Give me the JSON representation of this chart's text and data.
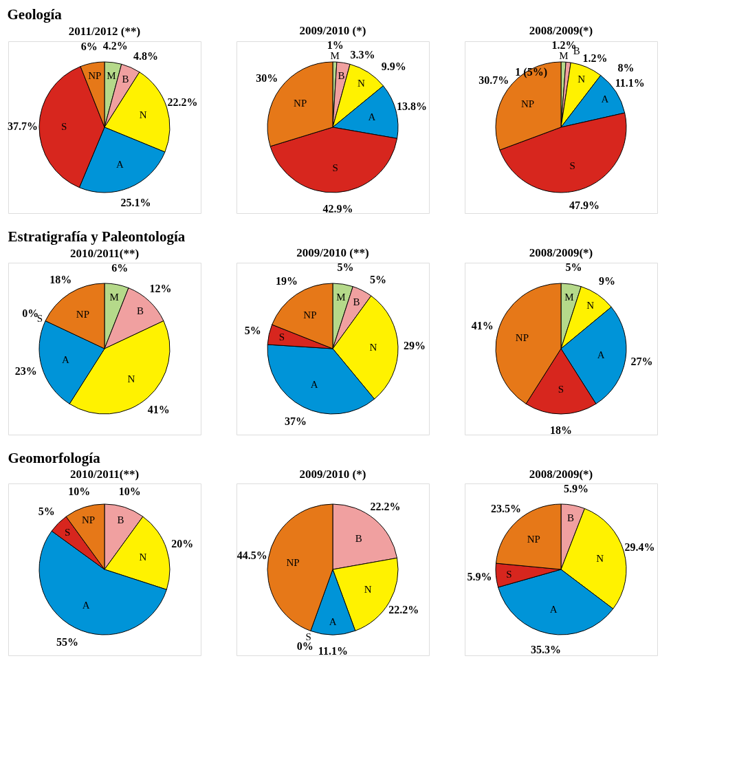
{
  "chart_data": [
    {
      "type": "pie",
      "title": "Geología",
      "subtitle": "2011/2012 (**)",
      "categories": [
        "M",
        "B",
        "N",
        "A",
        "S",
        "NP"
      ],
      "values": [
        4.2,
        4.8,
        22.2,
        25.1,
        37.7,
        6
      ],
      "value_labels": [
        "4.2%",
        "4.8%",
        "22.2%",
        "25.1%",
        "37.7%",
        "6%"
      ],
      "colors": [
        "#b5d98a",
        "#f0a0a0",
        "#fff200",
        "#0094d8",
        "#d7261e",
        "#e67818"
      ]
    },
    {
      "type": "pie",
      "subtitle": "2009/2010 (*)",
      "categories": [
        "M",
        "B",
        "N",
        "A",
        "S",
        "NP"
      ],
      "values": [
        1,
        3.3,
        9.9,
        13.8,
        42.9,
        30
      ],
      "value_labels": [
        "1%",
        "3.3%",
        "9.9%",
        "13.8%",
        "42.9%",
        "30%"
      ],
      "colors": [
        "#b5d98a",
        "#f0a0a0",
        "#fff200",
        "#0094d8",
        "#d7261e",
        "#e67818"
      ]
    },
    {
      "type": "pie",
      "subtitle": "2008/2009(*)",
      "categories": [
        "M",
        "B",
        "N",
        "A",
        "S",
        "NP"
      ],
      "values": [
        1.2,
        1.2,
        8,
        11.1,
        47.9,
        30.7
      ],
      "value_labels": [
        "1.2%",
        "1.2%",
        "8%",
        "11.1%",
        "47.9%",
        "30.7%"
      ],
      "colors": [
        "#b5d98a",
        "#f0a0a0",
        "#fff200",
        "#0094d8",
        "#d7261e",
        "#e67818"
      ],
      "annotations": [
        "1 (5%)"
      ]
    },
    {
      "type": "pie",
      "title": "Estratigrafía y Paleontología",
      "subtitle": "2010/2011(**)",
      "categories": [
        "M",
        "B",
        "N",
        "A",
        "S",
        "NP"
      ],
      "values": [
        6,
        12,
        41,
        23,
        0,
        18
      ],
      "value_labels": [
        "6%",
        "12%",
        "41%",
        "23%",
        "0%",
        "18%"
      ],
      "colors": [
        "#b5d98a",
        "#f0a0a0",
        "#fff200",
        "#0094d8",
        "#d7261e",
        "#e67818"
      ]
    },
    {
      "type": "pie",
      "subtitle": "2009/2010 (**)",
      "categories": [
        "M",
        "B",
        "N",
        "A",
        "S",
        "NP"
      ],
      "values": [
        5,
        5,
        29,
        37,
        5,
        19
      ],
      "value_labels": [
        "5%",
        "5%",
        "29%",
        "37%",
        "5%",
        "19%"
      ],
      "colors": [
        "#b5d98a",
        "#f0a0a0",
        "#fff200",
        "#0094d8",
        "#d7261e",
        "#e67818"
      ]
    },
    {
      "type": "pie",
      "subtitle": "2008/2009(*)",
      "categories": [
        "M",
        "N",
        "A",
        "S",
        "NP"
      ],
      "values": [
        5,
        9,
        27,
        18,
        41
      ],
      "value_labels": [
        "5%",
        "9%",
        "27%",
        "18%",
        "41%"
      ],
      "colors": [
        "#b5d98a",
        "#fff200",
        "#0094d8",
        "#d7261e",
        "#e67818"
      ]
    },
    {
      "type": "pie",
      "title": "Geomorfología",
      "subtitle": "2010/2011(**)",
      "categories": [
        "B",
        "N",
        "A",
        "S",
        "NP"
      ],
      "values": [
        10,
        20,
        55,
        5,
        10
      ],
      "value_labels": [
        "10%",
        "20%",
        "55%",
        "5%",
        "10%"
      ],
      "colors": [
        "#f0a0a0",
        "#fff200",
        "#0094d8",
        "#d7261e",
        "#e67818"
      ]
    },
    {
      "type": "pie",
      "subtitle": "2009/2010 (*)",
      "categories": [
        "B",
        "N",
        "A",
        "S",
        "NP"
      ],
      "values": [
        22.2,
        22.2,
        11.1,
        0,
        44.5
      ],
      "value_labels": [
        "22.2%",
        "22.2%",
        "11.1%",
        "0%",
        "44.5%"
      ],
      "colors": [
        "#f0a0a0",
        "#fff200",
        "#0094d8",
        "#d7261e",
        "#e67818"
      ]
    },
    {
      "type": "pie",
      "subtitle": "2008/2009(*)",
      "categories": [
        "B",
        "N",
        "A",
        "S",
        "NP"
      ],
      "values": [
        5.9,
        29.4,
        35.3,
        5.9,
        23.5
      ],
      "value_labels": [
        "5.9%",
        "29.4%",
        "35.3%",
        "5.9%",
        "23.5%"
      ],
      "colors": [
        "#f0a0a0",
        "#fff200",
        "#0094d8",
        "#d7261e",
        "#e67818"
      ]
    }
  ]
}
